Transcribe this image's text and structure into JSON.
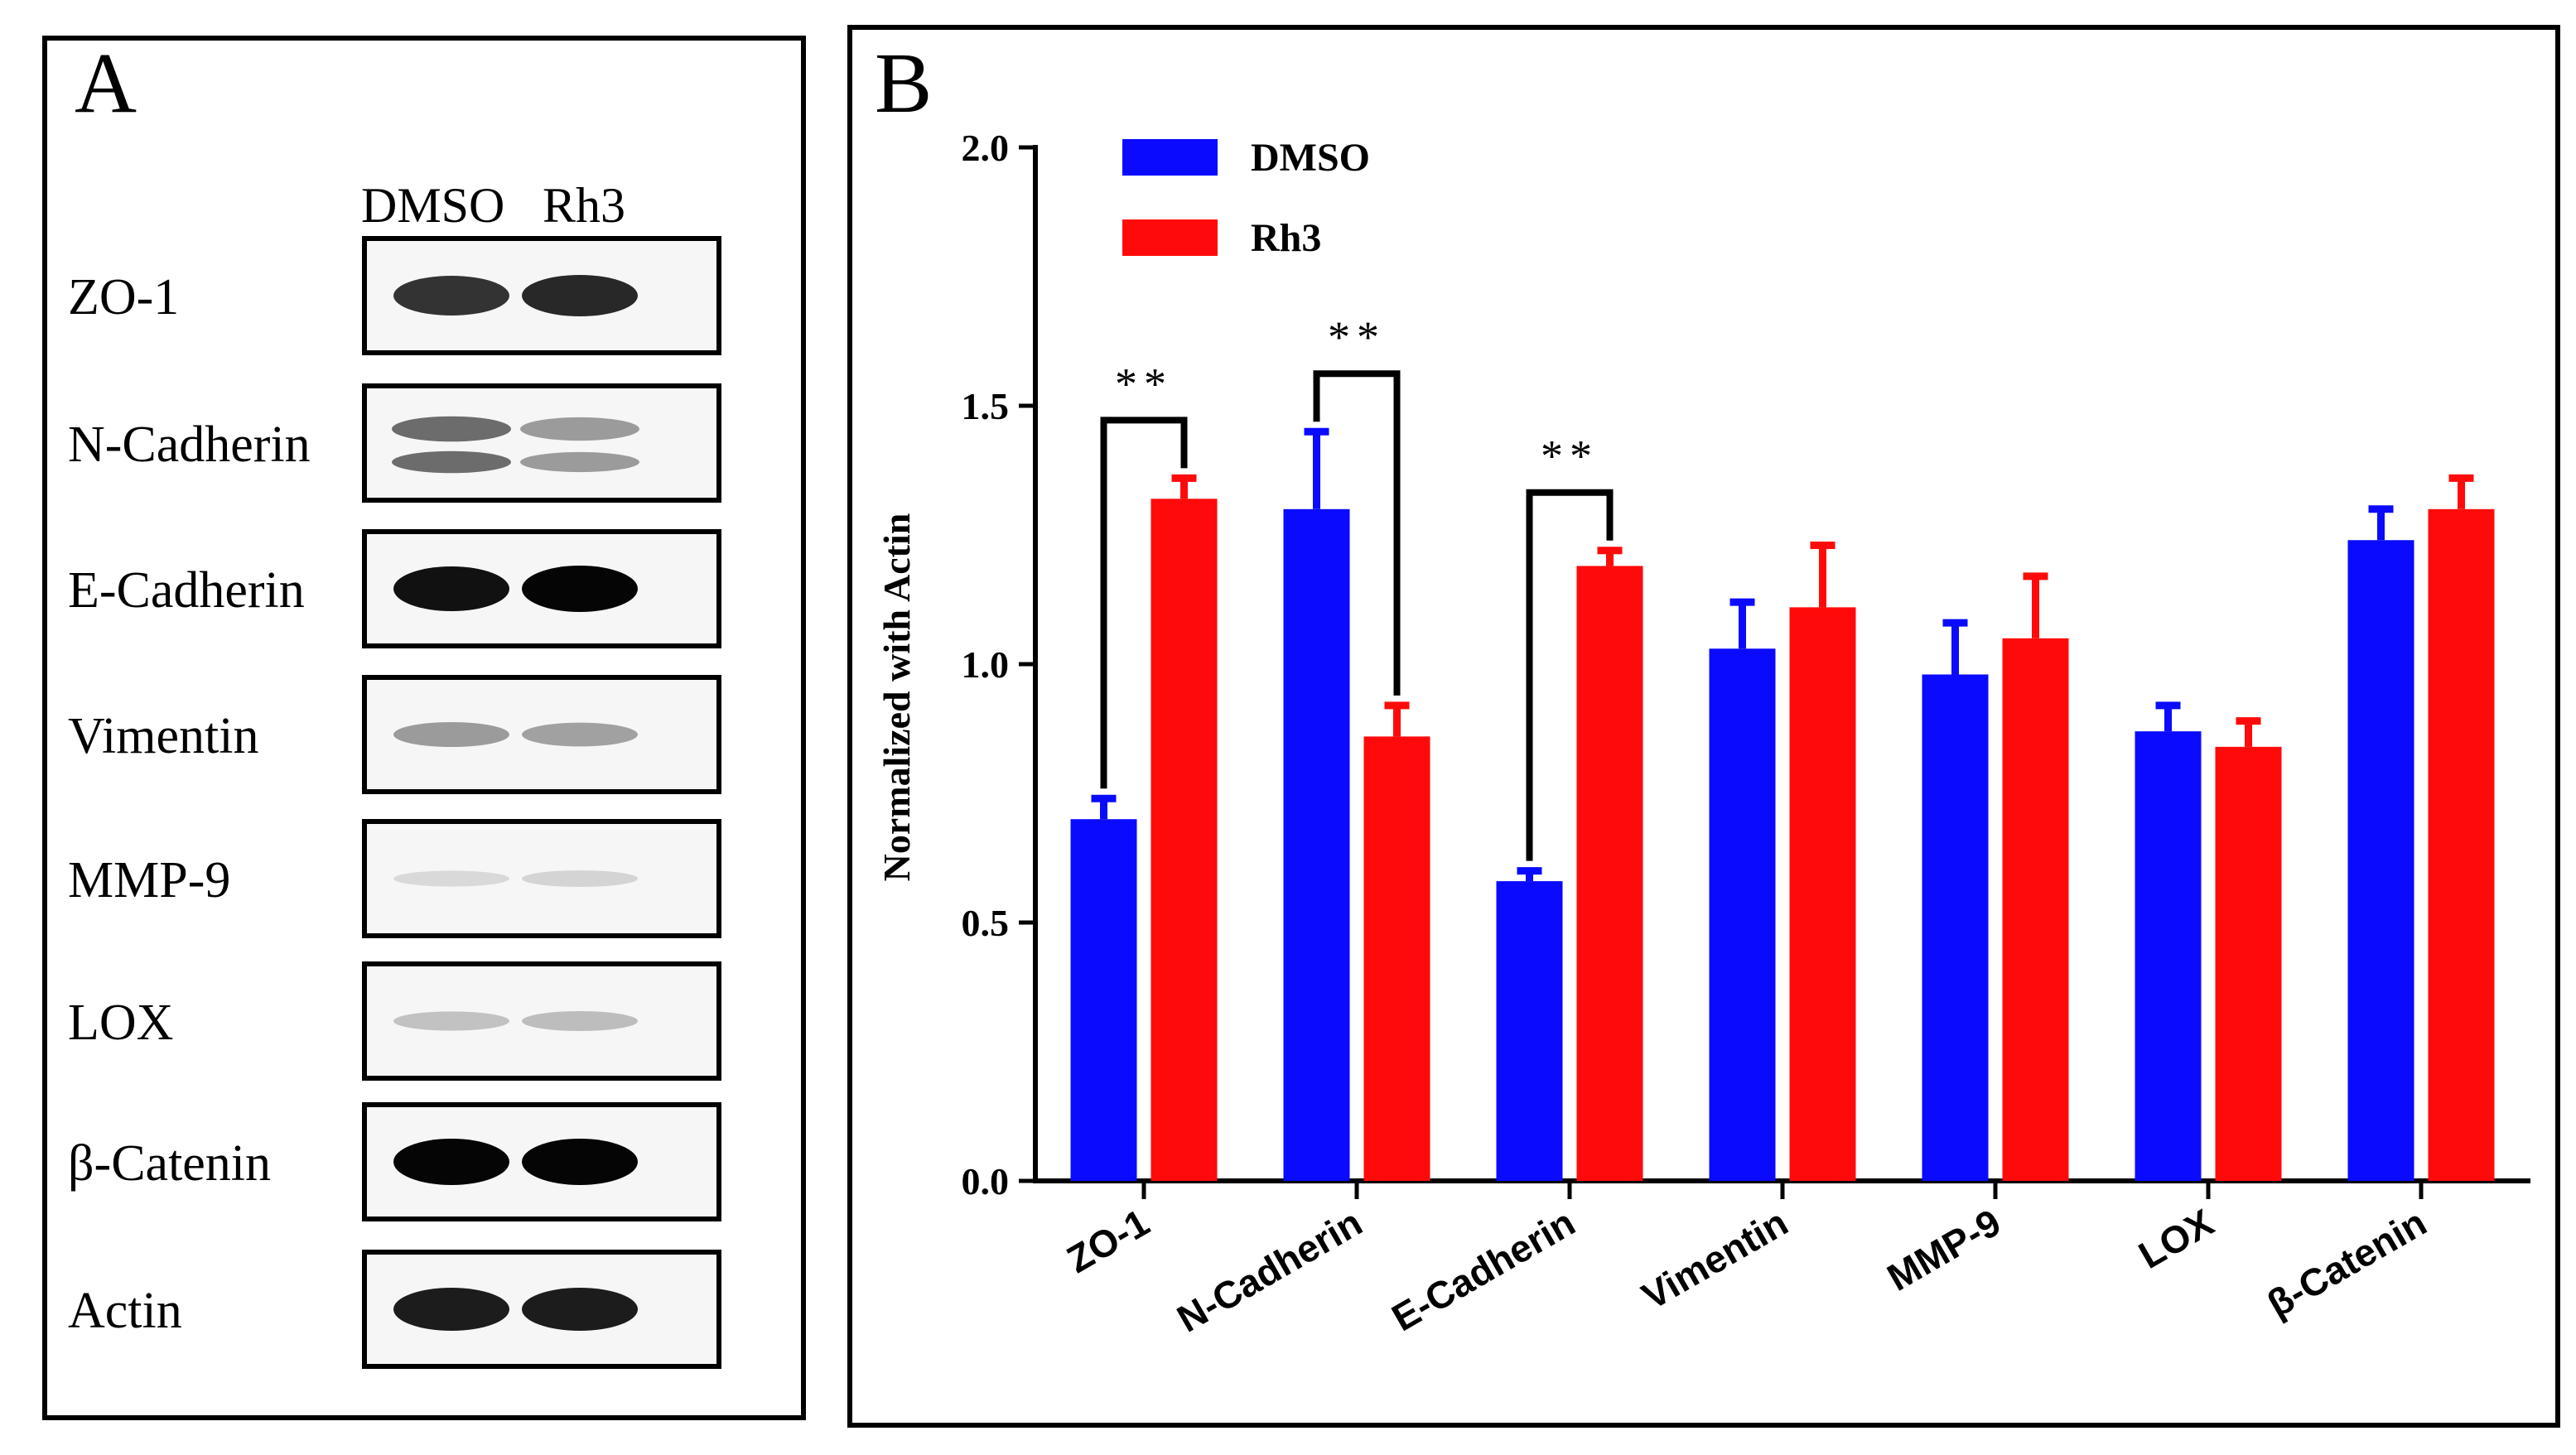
{
  "panel_a": {
    "label": "A",
    "lane_labels": [
      "DMSO",
      "Rh3"
    ],
    "blots": [
      {
        "protein": "ZO-1",
        "dmso_intensity": 0.8,
        "rh3_intensity": 0.85,
        "bands": 1
      },
      {
        "protein": "N-Cadherin",
        "dmso_intensity": 0.55,
        "rh3_intensity": 0.35,
        "bands": 2
      },
      {
        "protein": "E-Cadherin",
        "dmso_intensity": 0.95,
        "rh3_intensity": 1.0,
        "bands": 1
      },
      {
        "protein": "Vimentin",
        "dmso_intensity": 0.35,
        "rh3_intensity": 0.32,
        "bands": 1
      },
      {
        "protein": "MMP-9",
        "dmso_intensity": 0.08,
        "rh3_intensity": 0.1,
        "bands": 1
      },
      {
        "protein": "LOX",
        "dmso_intensity": 0.18,
        "rh3_intensity": 0.2,
        "bands": 1
      },
      {
        "protein": "β-Catenin",
        "dmso_intensity": 1.0,
        "rh3_intensity": 1.0,
        "bands": 1
      },
      {
        "protein": "Actin",
        "dmso_intensity": 0.9,
        "rh3_intensity": 0.9,
        "bands": 1
      }
    ]
  },
  "chart_data": {
    "type": "bar",
    "panel_label": "B",
    "title": "",
    "xlabel": "",
    "ylabel": "Normalized with Actin",
    "ylim": [
      0,
      2.0
    ],
    "yticks": [
      0.0,
      0.5,
      1.0,
      1.5,
      2.0
    ],
    "ytick_labels": [
      "0.0",
      "0.5",
      "1.0",
      "1.5",
      "2.0"
    ],
    "categories": [
      "ZO-1",
      "N-Cadherin",
      "E-Cadherin",
      "Vimentin",
      "MMP-9",
      "LOX",
      "β-Catenin"
    ],
    "series": [
      {
        "name": "DMSO",
        "color": "#0a0aff",
        "values": [
          0.7,
          1.3,
          0.58,
          1.03,
          0.98,
          0.87,
          1.24
        ],
        "errors": [
          0.04,
          0.15,
          0.02,
          0.09,
          0.1,
          0.05,
          0.06
        ]
      },
      {
        "name": "Rh3",
        "color": "#ff0a0a",
        "values": [
          1.32,
          0.86,
          1.19,
          1.11,
          1.05,
          0.84,
          1.3
        ],
        "errors": [
          0.04,
          0.06,
          0.03,
          0.12,
          0.12,
          0.05,
          0.06
        ]
      }
    ],
    "significance": [
      {
        "category": "ZO-1",
        "label": "**"
      },
      {
        "category": "N-Cadherin",
        "label": "**"
      },
      {
        "category": "E-Cadherin",
        "label": "**"
      }
    ],
    "legend_position": "top-left"
  }
}
